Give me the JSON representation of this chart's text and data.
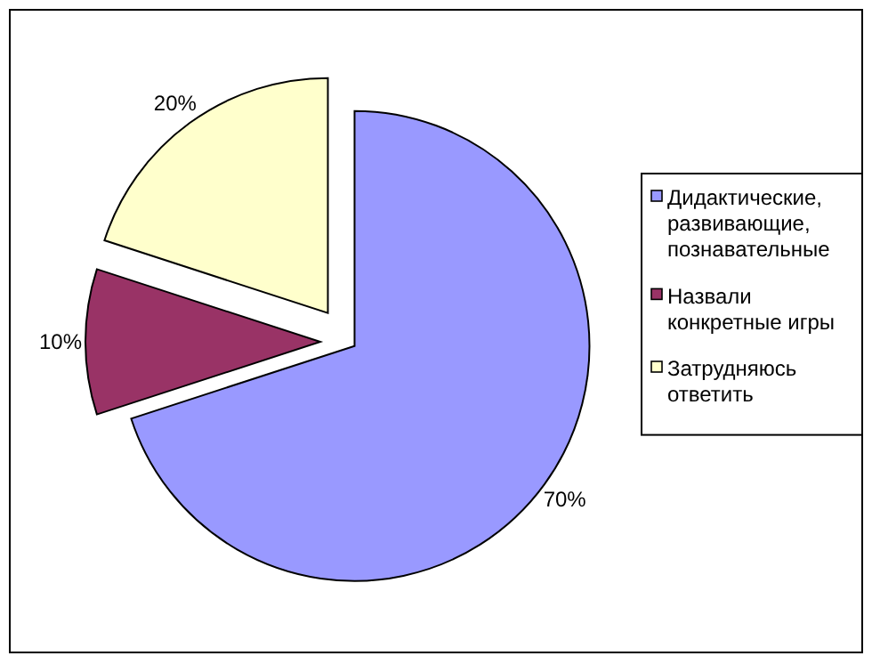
{
  "chart_data": {
    "type": "pie",
    "categories": [
      "Дидактические, развивающие, познавательные",
      "Назвали конкретные игры",
      "Затрудняюсь ответить"
    ],
    "values": [
      70,
      10,
      20
    ],
    "colors": [
      "#9999ff",
      "#993366",
      "#ffffcc"
    ],
    "value_labels": [
      "70%",
      "10%",
      "20%"
    ],
    "legend": "right"
  }
}
